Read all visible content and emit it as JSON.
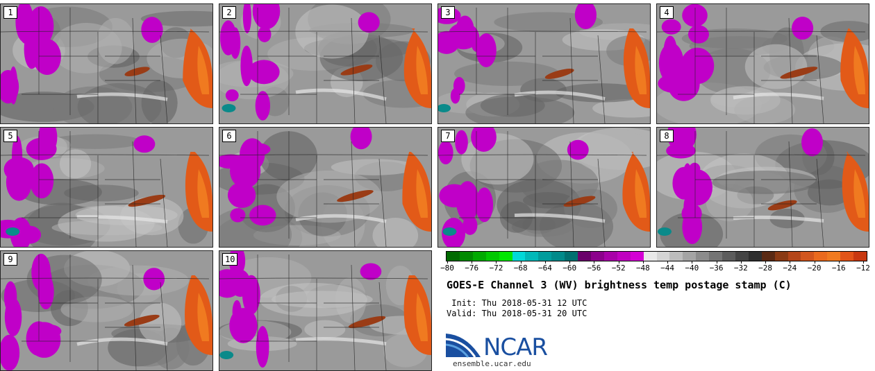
{
  "panels": [
    "1",
    "2",
    "3",
    "4",
    "5",
    "6",
    "7",
    "8",
    "9",
    "10"
  ],
  "colorbar": {
    "colors": [
      "#006a00",
      "#008a00",
      "#00aa00",
      "#00c800",
      "#00e600",
      "#00d8d8",
      "#00b8b8",
      "#009c9c",
      "#008a8a",
      "#007070",
      "#6a006a",
      "#8c008c",
      "#a800a8",
      "#c000c0",
      "#d400d4",
      "#e8e8e8",
      "#d4d4d4",
      "#bcbcbc",
      "#a4a4a4",
      "#8c8c8c",
      "#747474",
      "#5c5c5c",
      "#444444",
      "#2e2e2e",
      "#5a2a14",
      "#8a3a14",
      "#b4461a",
      "#d2561e",
      "#ea6a1e",
      "#f07a20",
      "#e25418",
      "#c83810"
    ],
    "tick_labels": [
      "−80",
      "−76",
      "−72",
      "−68",
      "−64",
      "−60",
      "−56",
      "−52",
      "−48",
      "−44",
      "−40",
      "−36",
      "−32",
      "−28",
      "−24",
      "−20",
      "−16",
      "−12"
    ]
  },
  "title": "GOES-E Channel 3 (WV) brightness temp postage stamp (C)",
  "init": " Init: Thu 2018-05-31 12 UTC",
  "valid": "Valid: Thu 2018-05-31 20 UTC",
  "logo_text": "NCAR",
  "url": "ensemble.ucar.edu"
}
